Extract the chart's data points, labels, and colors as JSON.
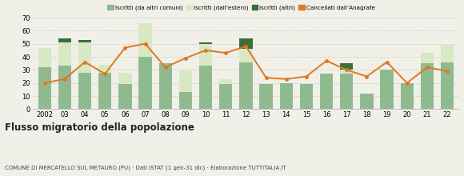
{
  "years": [
    "2002",
    "03",
    "04",
    "05",
    "06",
    "07",
    "08",
    "09",
    "10",
    "11",
    "12",
    "13",
    "14",
    "15",
    "16",
    "17",
    "18",
    "19",
    "20",
    "21",
    "22"
  ],
  "iscritti_altri_comuni": [
    32,
    33,
    28,
    28,
    19,
    40,
    35,
    13,
    33,
    19,
    36,
    19,
    20,
    19,
    27,
    27,
    12,
    30,
    20,
    35,
    36
  ],
  "iscritti_estero": [
    15,
    18,
    23,
    6,
    9,
    26,
    0,
    17,
    17,
    4,
    10,
    0,
    0,
    0,
    0,
    3,
    0,
    0,
    0,
    8,
    14
  ],
  "iscritti_altri": [
    0,
    3,
    2,
    0,
    0,
    0,
    0,
    0,
    1,
    0,
    8,
    0,
    0,
    0,
    0,
    5,
    0,
    0,
    0,
    0,
    0
  ],
  "cancellati": [
    20,
    23,
    36,
    27,
    47,
    50,
    32,
    39,
    45,
    43,
    48,
    24,
    23,
    25,
    37,
    30,
    25,
    36,
    20,
    32,
    29
  ],
  "color_altri_comuni": "#8fba8f",
  "color_estero": "#d9e8c4",
  "color_altri": "#3a6e3a",
  "color_cancellati": "#e07820",
  "title": "Flusso migratorio della popolazione",
  "subtitle": "COMUNE DI MERCATELLO SUL METAURO (PU) · Dati ISTAT (1 gen-31 dic) · Elaborazione TUTTITALIA.IT",
  "legend_labels": [
    "Iscritti (da altri comuni)",
    "Iscritti (dall'estero)",
    "Iscritti (altri)",
    "Cancellati dall’Anagrafe"
  ],
  "ylim": [
    0,
    70
  ],
  "yticks": [
    0,
    10,
    20,
    30,
    40,
    50,
    60,
    70
  ],
  "grid_color": "#cccccc",
  "bg_color": "#f0f0e8"
}
